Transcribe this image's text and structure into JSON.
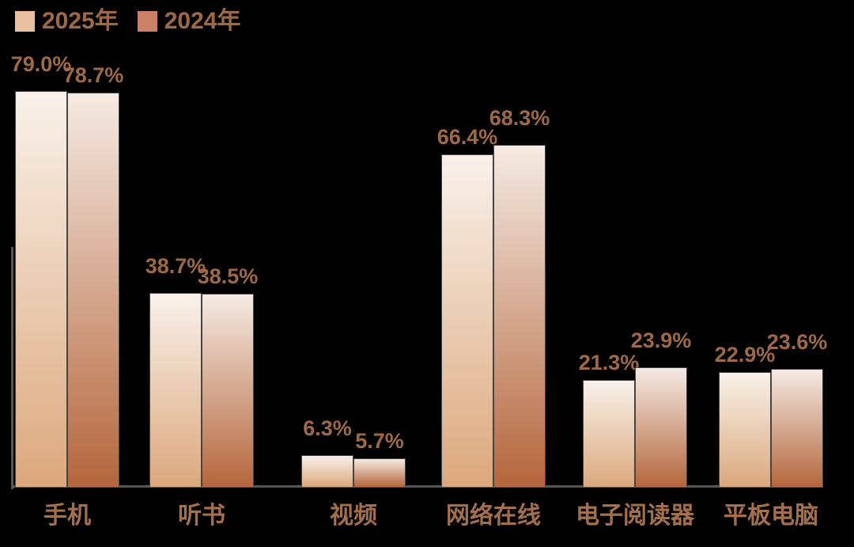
{
  "chart_data": {
    "type": "bar",
    "title": "",
    "categories": [
      "手机",
      "听书",
      "视频",
      "网络在线",
      "电子阅读器",
      "平板电脑"
    ],
    "series": [
      {
        "name": "2025年",
        "values": [
          79.0,
          38.7,
          6.3,
          66.4,
          21.3,
          22.9
        ],
        "labels": [
          "79.0%",
          "38.7%",
          "6.3%",
          "66.4%",
          "21.3%",
          "22.9%"
        ],
        "swatch_color": "#E8BF9F",
        "gradient_top": "#F8F1EA",
        "gradient_bottom": "#DCA87D"
      },
      {
        "name": "2024年",
        "values": [
          78.7,
          38.5,
          5.7,
          68.3,
          23.9,
          23.6
        ],
        "labels": [
          "78.7%",
          "38.5%",
          "5.7%",
          "68.3%",
          "23.9%",
          "23.6%"
        ],
        "swatch_color": "#CA8166",
        "gradient_top": "#F5EAE3",
        "gradient_bottom": "#B4663C"
      }
    ],
    "unit": "%",
    "ylim": [
      0,
      85
    ],
    "grid": false,
    "legend_position": "top-left",
    "xlabel": "",
    "ylabel": "",
    "colors": {
      "background": "#000000",
      "value_label": "#9F6945",
      "category_label": "#A4704B",
      "legend_text": "#9E6945",
      "axis": "#565656"
    }
  }
}
